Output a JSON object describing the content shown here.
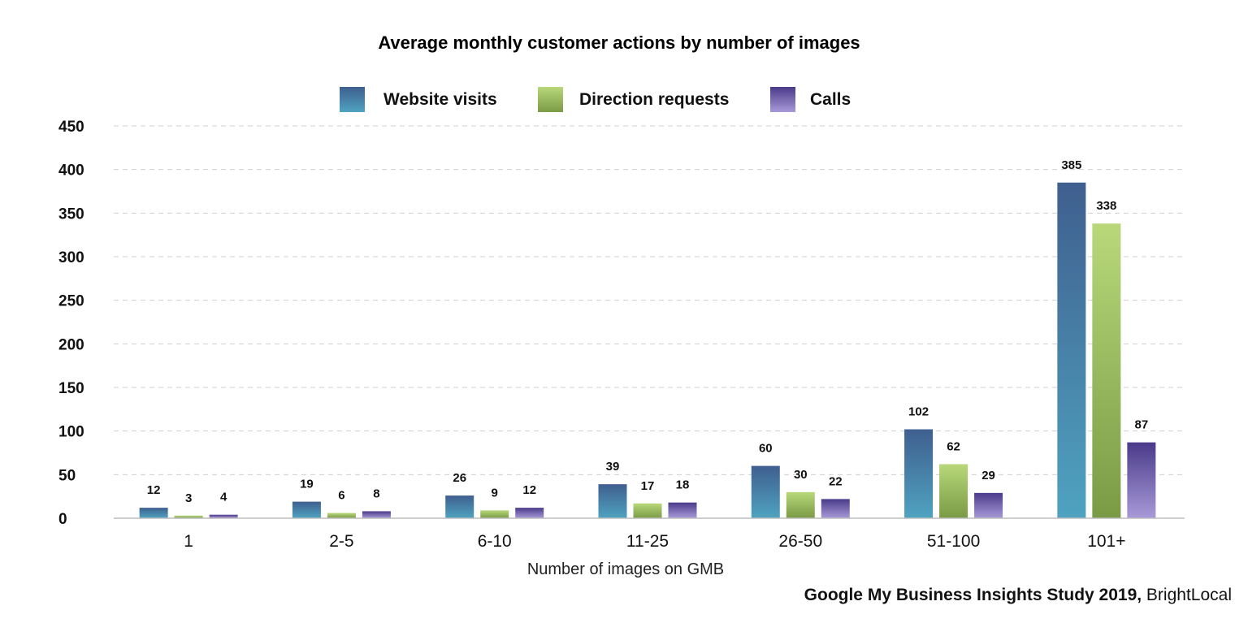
{
  "chart_data": {
    "type": "bar",
    "title": "Average monthly customer actions by number of images",
    "xlabel": "Number of images on GMB",
    "ylabel": "",
    "ylim": [
      0,
      450
    ],
    "yticks": [
      0,
      50,
      100,
      150,
      200,
      250,
      300,
      350,
      400,
      450
    ],
    "grid": "horizontal dashed",
    "legend_position": "top-center",
    "categories": [
      "1",
      "2-5",
      "6-10",
      "11-25",
      "26-50",
      "51-100",
      "101+"
    ],
    "series": [
      {
        "name": "Website visits",
        "values": [
          12,
          19,
          26,
          39,
          60,
          102,
          385
        ],
        "color_top": "#3f5f8f",
        "color_bottom": "#4fa3c0"
      },
      {
        "name": "Direction requests",
        "values": [
          3,
          6,
          9,
          17,
          30,
          62,
          338
        ],
        "color_top": "#b8d87a",
        "color_bottom": "#7a9a45"
      },
      {
        "name": "Calls",
        "values": [
          4,
          8,
          12,
          18,
          22,
          29,
          87
        ],
        "color_top": "#4a3a8a",
        "color_bottom": "#a89ad8"
      }
    ]
  },
  "source": {
    "bold_text": "Google My Business Insights Study 2019,",
    "text": " BrightLocal"
  }
}
